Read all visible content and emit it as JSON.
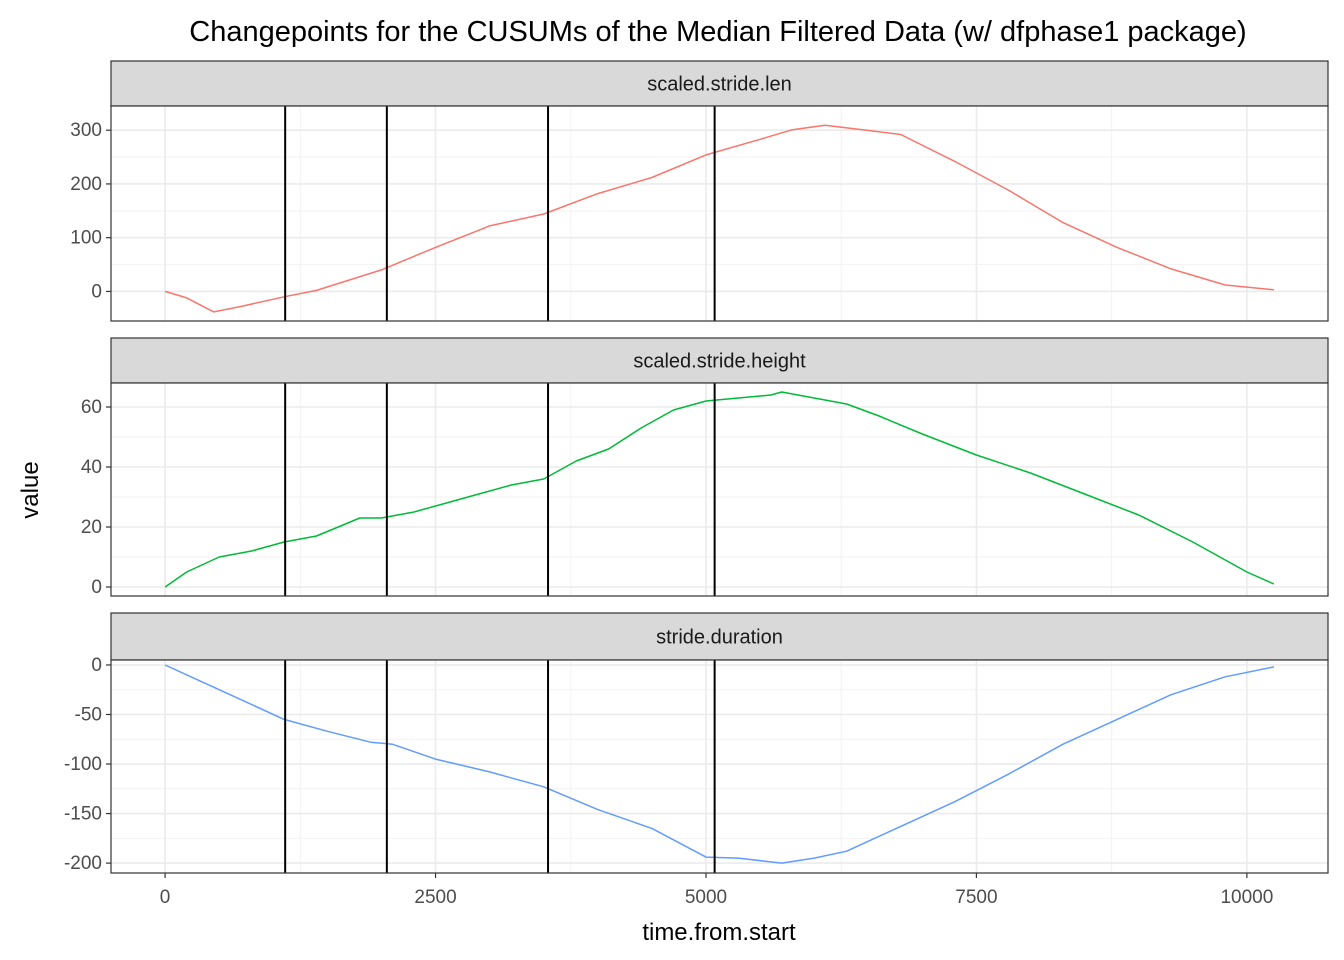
{
  "chart_data": {
    "type": "line",
    "title": "Changepoints for the CUSUMs of the Median Filtered Data (w/ dfphase1 package)",
    "xlabel": "time.from.start",
    "ylabel": "value",
    "xlim": [
      -500,
      10750
    ],
    "x_ticks": [
      0,
      2500,
      5000,
      7500,
      10000
    ],
    "x_tick_labels": [
      "0",
      "2500",
      "5000",
      "7500",
      "10000"
    ],
    "grid": true,
    "legend": "none",
    "changepoints": [
      1110,
      2050,
      3540,
      5080
    ],
    "panels": [
      {
        "name": "scaled.stride.len",
        "color": "#F8766D",
        "ylim": [
          -55,
          345
        ],
        "y_ticks": [
          0,
          100,
          200,
          300
        ],
        "y_tick_labels": [
          "0",
          "100",
          "200",
          "300"
        ],
        "x": [
          0,
          200,
          450,
          700,
          1100,
          1400,
          2000,
          2500,
          3000,
          3500,
          4000,
          4500,
          5000,
          5500,
          5800,
          6100,
          6400,
          6800,
          7300,
          7800,
          8300,
          8800,
          9300,
          9800,
          10250
        ],
        "values": [
          0,
          -12,
          -38,
          -28,
          -10,
          2,
          40,
          82,
          122,
          144,
          182,
          212,
          254,
          283,
          301,
          309,
          302,
          292,
          242,
          188,
          128,
          82,
          42,
          12,
          3
        ]
      },
      {
        "name": "scaled.stride.height",
        "color": "#00BA38",
        "ylim": [
          -3,
          68
        ],
        "y_ticks": [
          0,
          20,
          40,
          60
        ],
        "y_tick_labels": [
          "0",
          "20",
          "40",
          "60"
        ],
        "x": [
          0,
          200,
          500,
          800,
          1100,
          1400,
          1600,
          1800,
          2000,
          2300,
          2600,
          2900,
          3200,
          3500,
          3800,
          4100,
          4400,
          4700,
          5000,
          5300,
          5600,
          5700,
          6000,
          6300,
          6600,
          7000,
          7500,
          8000,
          8500,
          9000,
          9500,
          10000,
          10250
        ],
        "values": [
          0,
          5,
          10,
          12,
          15,
          17,
          20,
          23,
          23,
          25,
          28,
          31,
          34,
          36,
          42,
          46,
          53,
          59,
          62,
          63,
          64,
          65,
          63,
          61,
          57,
          51,
          44,
          38,
          31,
          24,
          15,
          5,
          1
        ]
      },
      {
        "name": "stride.duration",
        "color": "#619CFF",
        "ylim": [
          -210,
          5
        ],
        "y_ticks": [
          0,
          -50,
          -100,
          -150,
          -200
        ],
        "y_tick_labels": [
          "0",
          "-50",
          "-100",
          "-150",
          "-200"
        ],
        "x": [
          0,
          300,
          700,
          1100,
          1500,
          1900,
          2100,
          2500,
          3000,
          3500,
          4000,
          4500,
          5000,
          5300,
          5700,
          6000,
          6300,
          6800,
          7300,
          7800,
          8300,
          8800,
          9300,
          9800,
          10250
        ],
        "values": [
          0,
          -15,
          -35,
          -55,
          -67,
          -78,
          -80,
          -95,
          -108,
          -123,
          -146,
          -165,
          -194,
          -195,
          -200,
          -195,
          -188,
          -163,
          -138,
          -110,
          -80,
          -55,
          -30,
          -12,
          -2
        ]
      }
    ]
  }
}
